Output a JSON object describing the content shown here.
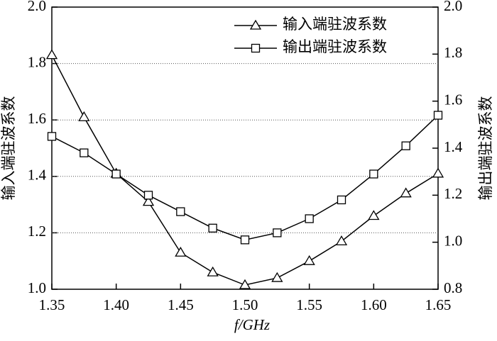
{
  "chart_data": {
    "type": "line",
    "x": [
      1.35,
      1.375,
      1.4,
      1.425,
      1.45,
      1.475,
      1.5,
      1.525,
      1.55,
      1.575,
      1.6,
      1.625,
      1.65
    ],
    "series": [
      {
        "name": "输入端驻波系数",
        "color": "#000000",
        "marker": "triangle",
        "axis": "y",
        "values": [
          1.83,
          1.61,
          1.41,
          1.31,
          1.13,
          1.06,
          1.015,
          1.04,
          1.1,
          1.17,
          1.26,
          1.34,
          1.41
        ]
      },
      {
        "name": "输出端驻波系数",
        "color": "#000000",
        "marker": "square",
        "axis": "y2",
        "values": [
          1.45,
          1.38,
          1.29,
          1.2,
          1.13,
          1.06,
          1.01,
          1.04,
          1.1,
          1.18,
          1.29,
          1.41,
          1.54
        ]
      }
    ],
    "xlabel": "f/GHz",
    "ylabel": "输入端驻波系数",
    "y2label": "输出端驻波系数",
    "xlim": [
      1.35,
      1.65
    ],
    "xticks": [
      1.35,
      {
        "value": 1.4,
        "label": "1.40"
      },
      1.45,
      {
        "value": 1.5,
        "label": "1.50"
      },
      1.55,
      {
        "value": 1.6,
        "label": "1.60"
      },
      1.65
    ],
    "ylim": [
      1,
      2
    ],
    "yticks": [
      {
        "value": 1,
        "label": "1.0"
      },
      1.2,
      1.4,
      1.6,
      1.8,
      {
        "value": 2,
        "label": "2.0"
      }
    ],
    "y2lim": [
      0.8,
      2
    ],
    "y2ticks": [
      0.8,
      {
        "value": 1,
        "label": "1.0"
      },
      1.2,
      1.4,
      1.6,
      1.8,
      {
        "value": 2,
        "label": "2.0"
      }
    ],
    "grid": true,
    "legend": "upper right"
  }
}
